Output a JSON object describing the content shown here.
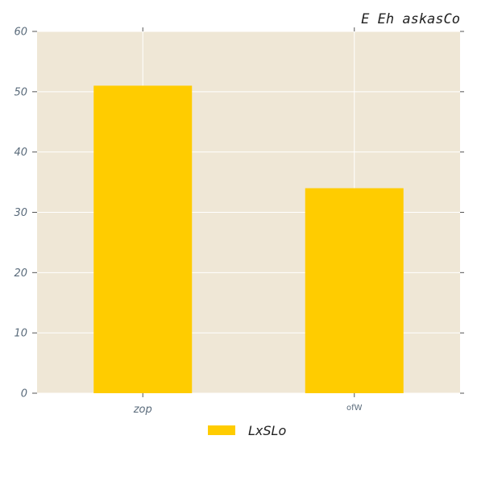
{
  "chart_data": {
    "type": "bar",
    "title": "E Eh askasCo",
    "categories": [
      "zop",
      "ofW"
    ],
    "series": [
      {
        "name": "LxSLo",
        "values": [
          51,
          34
        ]
      }
    ],
    "xlabel": "",
    "ylabel": "",
    "ylim": [
      0,
      60
    ],
    "yticks": [
      0,
      10,
      20,
      30,
      40,
      50,
      60
    ],
    "grid": true,
    "legend_position": "bottom-center",
    "colors": {
      "plot_background": "#efe7d6",
      "bar": "#ffcc00",
      "grid": "#ffffff",
      "tick_text": "#5a6b7b"
    }
  }
}
